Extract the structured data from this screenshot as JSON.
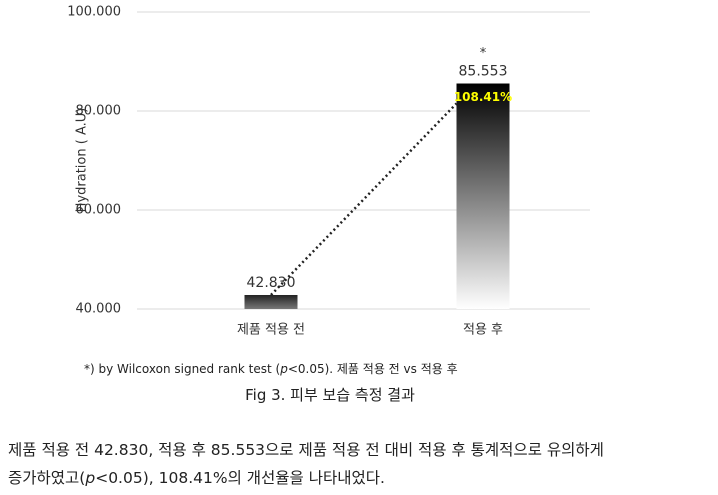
{
  "chart_data": {
    "type": "bar",
    "y_label": "Hydration ( A.U)",
    "categories": [
      "제품 적용 전",
      "적용 후"
    ],
    "values": [
      42.83,
      85.553
    ],
    "value_labels": [
      "42.830",
      "85.553"
    ],
    "colors": [
      "#3a3a3a",
      "#000000"
    ],
    "annotations": [
      "*",
      "108.41%"
    ],
    "ylim": [
      40,
      100
    ],
    "yticks": [
      {
        "value": 40,
        "label": "40.000"
      },
      {
        "value": 60,
        "label": "60.000"
      },
      {
        "value": 80,
        "label": "80.000"
      },
      {
        "value": 100,
        "label": "100.000"
      }
    ],
    "grid": true
  },
  "footnote": [
    "*) by Wilcoxon signed rank test (",
    "p",
    "<0.05). 제품 적용 전 vs 적용 후"
  ],
  "caption": "Fig 3. 피부 보습 측정 결과",
  "body": [
    [
      "제품 적용 전 42.830, 적용 후 85.553으로 제품 적용 전 대비 적용 후 통계적으로 유의하게"
    ],
    [
      "증가하였고(",
      "p",
      "<0.05), 108.41%의 개선율을 나타내었다."
    ]
  ]
}
